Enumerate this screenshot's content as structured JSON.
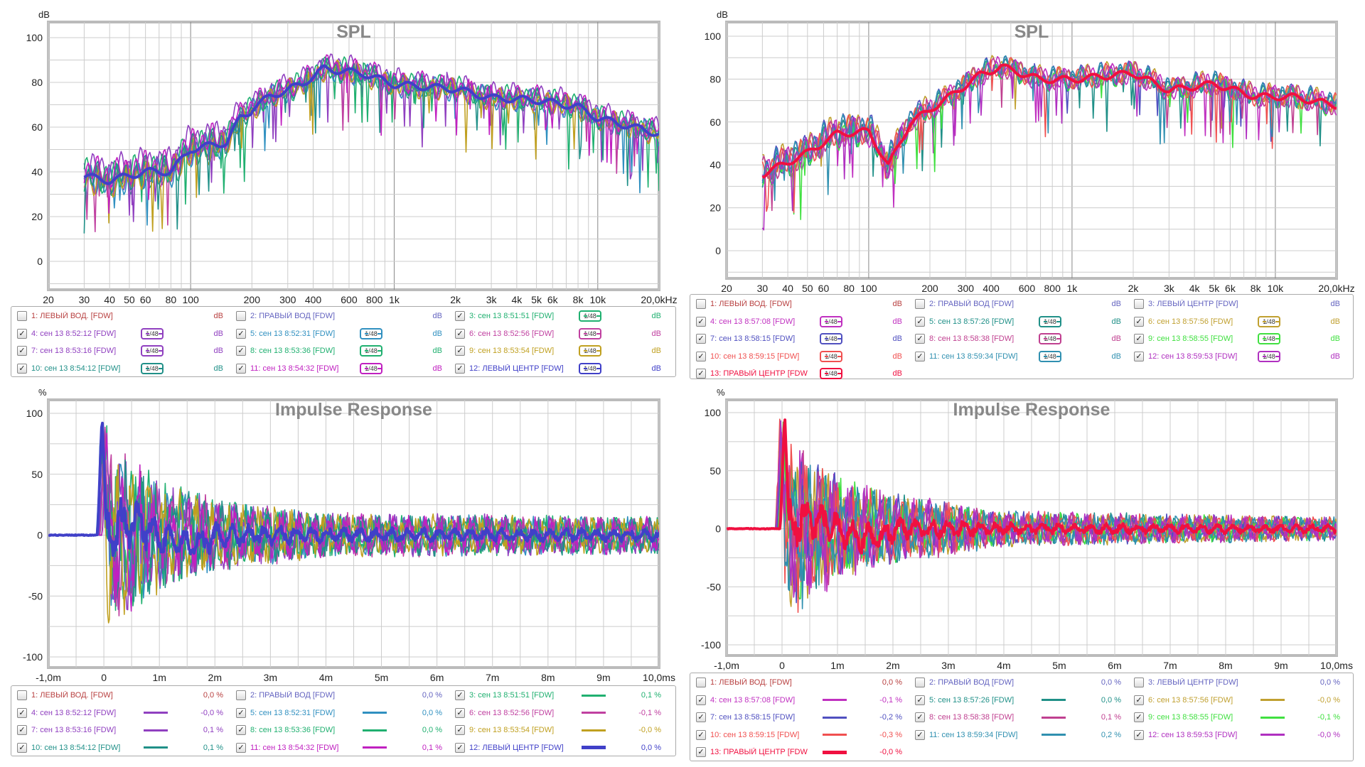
{
  "chart_data": [
    {
      "id": "spl-left",
      "type": "line",
      "title": "SPL",
      "ylabel": "dB",
      "xscale": "log",
      "xlim": [
        20,
        20000
      ],
      "ylim": [
        -12,
        107
      ],
      "yticks": [
        0,
        20,
        40,
        60,
        80,
        100
      ],
      "xticks": [
        "20",
        "30",
        "40",
        "50",
        "60",
        "80",
        "100",
        "200",
        "300",
        "400",
        "600",
        "800",
        "1k",
        "2k",
        "3k",
        "4k",
        "5k",
        "6k",
        "8k",
        "10k",
        "20,0kHz"
      ],
      "xtick_values": [
        20,
        30,
        40,
        50,
        60,
        80,
        100,
        200,
        300,
        400,
        600,
        800,
        1000,
        2000,
        3000,
        4000,
        5000,
        6000,
        8000,
        10000,
        20000
      ],
      "base_curve": [
        [
          30,
          40
        ],
        [
          40,
          38
        ],
        [
          60,
          42
        ],
        [
          80,
          42
        ],
        [
          100,
          52
        ],
        [
          150,
          55
        ],
        [
          175,
          66
        ],
        [
          250,
          75
        ],
        [
          350,
          80
        ],
        [
          450,
          87
        ],
        [
          700,
          85
        ],
        [
          1000,
          80
        ],
        [
          2000,
          78
        ],
        [
          3000,
          74
        ],
        [
          5000,
          73
        ],
        [
          8000,
          70
        ],
        [
          10000,
          65
        ],
        [
          20000,
          58
        ]
      ],
      "legend_unit": "dB",
      "series": [
        {
          "label": "1: ЛЕВЫЙ ВОД. [FDW]",
          "color": "#b84040",
          "checked": false,
          "filter": ""
        },
        {
          "label": "2: ПРАВЫЙ ВОД [FDW]",
          "color": "#6464c0",
          "checked": false,
          "filter": ""
        },
        {
          "label": "3: сен 13 8:51:51 [FDW]",
          "color": "#20b070",
          "checked": true,
          "filter": "1/48"
        },
        {
          "label": "4: сен 13 8:52:12 [FDW]",
          "color": "#9040c0",
          "checked": true,
          "filter": "1/48"
        },
        {
          "label": "5: сен 13 8:52:31 [FDW]",
          "color": "#3090c0",
          "checked": true,
          "filter": "1/48"
        },
        {
          "label": "6: сен 13 8:52:56 [FDW]",
          "color": "#c040a0",
          "checked": true,
          "filter": "1/48"
        },
        {
          "label": "7: сен 13 8:53:16 [FDW]",
          "color": "#9040c0",
          "checked": true,
          "filter": "1/48"
        },
        {
          "label": "8: сен 13 8:53:36 [FDW]",
          "color": "#20b070",
          "checked": true,
          "filter": "1/48"
        },
        {
          "label": "9: сен 13 8:53:54 [FDW]",
          "color": "#c0a020",
          "checked": true,
          "filter": "1/48"
        },
        {
          "label": "10: сен 13 8:54:12 [FDW]",
          "color": "#209088",
          "checked": true,
          "filter": "1/48"
        },
        {
          "label": "11: сен 13 8:54:32 [FDW]",
          "color": "#c020c0",
          "checked": true,
          "filter": "1/48"
        },
        {
          "label": "12: ЛЕВЫЙ ЦЕНТР [FDW]",
          "color": "#4040c8",
          "checked": true,
          "filter": "1/48",
          "thick": true
        }
      ]
    },
    {
      "id": "spl-right",
      "type": "line",
      "title": "SPL",
      "ylabel": "dB",
      "xscale": "log",
      "xlim": [
        20,
        20000
      ],
      "ylim": [
        -13,
        107
      ],
      "yticks": [
        0,
        20,
        40,
        60,
        80,
        100
      ],
      "xticks": [
        "20",
        "30",
        "40",
        "50",
        "60",
        "80",
        "100",
        "200",
        "300",
        "400",
        "600",
        "800",
        "1k",
        "2k",
        "3k",
        "4k",
        "5k",
        "6k",
        "8k",
        "10k",
        "20,0kHz"
      ],
      "xtick_values": [
        20,
        30,
        40,
        50,
        60,
        80,
        100,
        200,
        300,
        400,
        600,
        800,
        1000,
        2000,
        3000,
        4000,
        5000,
        6000,
        8000,
        10000,
        20000
      ],
      "base_curve": [
        [
          30,
          36
        ],
        [
          50,
          46
        ],
        [
          70,
          55
        ],
        [
          100,
          56
        ],
        [
          125,
          40
        ],
        [
          160,
          60
        ],
        [
          250,
          72
        ],
        [
          350,
          82
        ],
        [
          450,
          86
        ],
        [
          700,
          80
        ],
        [
          1000,
          80
        ],
        [
          2000,
          83
        ],
        [
          3000,
          75
        ],
        [
          5000,
          78
        ],
        [
          8000,
          72
        ],
        [
          12000,
          72
        ],
        [
          20000,
          68
        ]
      ],
      "legend_unit": "dB",
      "series": [
        {
          "label": "1: ЛЕВЫЙ ВОД. [FDW]",
          "color": "#b84040",
          "checked": false,
          "filter": ""
        },
        {
          "label": "2: ПРАВЫЙ ВОД [FDW]",
          "color": "#6464c0",
          "checked": false,
          "filter": ""
        },
        {
          "label": "3: ЛЕВЫЙ ЦЕНТР [FDW]",
          "color": "#6464c0",
          "checked": false,
          "filter": ""
        },
        {
          "label": "4: сен 13 8:57:08 [FDW]",
          "color": "#c030c0",
          "checked": true,
          "filter": "1/48"
        },
        {
          "label": "5: сен 13 8:57:26 [FDW]",
          "color": "#209088",
          "checked": true,
          "filter": "1/48"
        },
        {
          "label": "6: сен 13 8:57:56 [FDW]",
          "color": "#c0a030",
          "checked": true,
          "filter": "1/48"
        },
        {
          "label": "7: сен 13 8:58:15 [FDW]",
          "color": "#5050c0",
          "checked": true,
          "filter": "1/48"
        },
        {
          "label": "8: сен 13 8:58:38 [FDW]",
          "color": "#c04090",
          "checked": true,
          "filter": "1/48"
        },
        {
          "label": "9: сен 13 8:58:55 [FDW]",
          "color": "#40e040",
          "checked": true,
          "filter": "1/48"
        },
        {
          "label": "10: сен 13 8:59:15 [FDW]",
          "color": "#f05050",
          "checked": true,
          "filter": "1/48"
        },
        {
          "label": "11: сен 13 8:59:34 [FDW]",
          "color": "#3090b0",
          "checked": true,
          "filter": "1/48"
        },
        {
          "label": "12: сен 13 8:59:53 [FDW]",
          "color": "#b030c0",
          "checked": true,
          "filter": "1/48"
        },
        {
          "label": "13: ПРАВЫЙ ЦЕНТР [FDW",
          "color": "#f01040",
          "checked": true,
          "filter": "1/48",
          "thick": true
        }
      ]
    },
    {
      "id": "ir-left",
      "type": "line",
      "title": "Impulse Response",
      "ylabel": "%",
      "xlim": [
        -1,
        10
      ],
      "ylim": [
        -111,
        111
      ],
      "yticks": [
        -100,
        -50,
        0,
        50,
        100
      ],
      "xticks": [
        "-1,0m",
        "0",
        "1m",
        "2m",
        "3m",
        "4m",
        "5m",
        "6m",
        "7m",
        "8m",
        "9m",
        "10,0ms"
      ],
      "xtick_values": [
        -1,
        0,
        1,
        2,
        3,
        4,
        5,
        6,
        7,
        8,
        9,
        10
      ],
      "peak": {
        "time_ms": 0,
        "value": 100
      },
      "envelope": [
        [
          0.3,
          70
        ],
        [
          1,
          45
        ],
        [
          2,
          30
        ],
        [
          4,
          18
        ],
        [
          10,
          15
        ]
      ],
      "series_values": [
        "0,0 %",
        "0,0 %",
        "0,1 %",
        "-0,0 %",
        "0,0 %",
        "-0,1 %",
        "0,1 %",
        "0,0 %",
        "-0,0 %",
        "0,1 %",
        "0,1 %",
        "0,0 %"
      ]
    },
    {
      "id": "ir-right",
      "type": "line",
      "title": "Impulse Response",
      "ylabel": "%",
      "xlim": [
        -1,
        10
      ],
      "ylim": [
        -112,
        112
      ],
      "yticks": [
        -100,
        -50,
        0,
        50,
        100
      ],
      "xticks": [
        "-1,0m",
        "0",
        "1m",
        "2m",
        "3m",
        "4m",
        "5m",
        "6m",
        "7m",
        "8m",
        "9m",
        "10,0ms"
      ],
      "xtick_values": [
        -1,
        0,
        1,
        2,
        3,
        4,
        5,
        6,
        7,
        8,
        9,
        10
      ],
      "peak": {
        "time_ms": 0,
        "value": 100
      },
      "envelope": [
        [
          0.3,
          70
        ],
        [
          1,
          45
        ],
        [
          2,
          30
        ],
        [
          4,
          15
        ],
        [
          10,
          10
        ]
      ],
      "series_values": [
        "0,0 %",
        "0,0 %",
        "0,0 %",
        "-0,1 %",
        "0,0 %",
        "-0,0 %",
        "-0,2 %",
        "0,1 %",
        "-0,1 %",
        "-0,3 %",
        "0,2 %",
        "-0,0 %",
        "-0,0 %"
      ]
    }
  ]
}
